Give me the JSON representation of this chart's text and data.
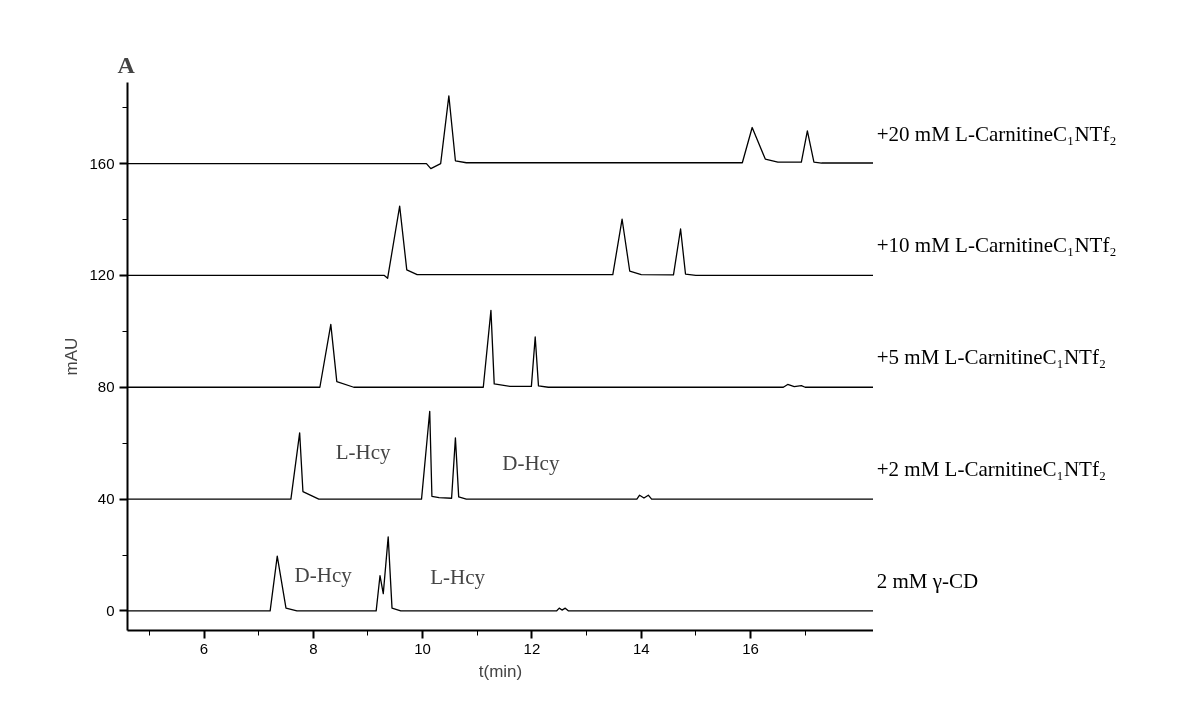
{
  "chart_data": {
    "type": "line",
    "title": "A",
    "xlabel": "t(min)",
    "ylabel": "mAU",
    "xlim": [
      4.6,
      18.25
    ],
    "ylim": [
      -7,
      189
    ],
    "xticks": [
      {
        "value": 5,
        "label": null
      },
      6,
      {
        "value": 7,
        "label": null
      },
      8,
      {
        "value": 9,
        "label": null
      },
      10,
      {
        "value": 11,
        "label": null
      },
      12,
      {
        "value": 13,
        "label": null
      },
      14,
      {
        "value": 15,
        "label": null
      },
      16,
      {
        "value": 17,
        "label": null
      }
    ],
    "yticks": [
      0,
      {
        "value": 20,
        "label": null
      },
      40,
      {
        "value": 60,
        "label": null
      },
      80,
      {
        "value": 100,
        "label": null
      },
      120,
      {
        "value": 140,
        "label": null
      },
      160,
      {
        "value": 180,
        "label": null
      }
    ],
    "grid": false,
    "marker": "none",
    "line_style": "solid",
    "annotations": [
      "D-Hcy",
      "L-Hcy",
      "L-Hcy",
      "D-Hcy"
    ],
    "series": [
      {
        "name": "2 mM γ-CD",
        "color": "#000000",
        "x": [
          4.6,
          7.21,
          7.34,
          7.5,
          7.7,
          9.15,
          9.22,
          9.28,
          9.37,
          9.44,
          9.6,
          12.45,
          12.5,
          12.55,
          12.61,
          12.67,
          18.25
        ],
        "values": [
          0,
          0,
          19.6,
          1,
          0,
          0,
          12.6,
          6.2,
          26.5,
          1,
          0,
          0,
          1,
          0.3,
          1,
          0,
          0
        ]
      },
      {
        "name": "+2 mM L-CarnitineC₁NTf₂",
        "color": "#000000",
        "x": [
          4.6,
          7.59,
          7.75,
          7.81,
          8.1,
          9.98,
          10.13,
          10.17,
          10.3,
          10.53,
          10.6,
          10.66,
          10.8,
          13.92,
          13.97,
          14.05,
          14.13,
          14.19,
          18.25
        ],
        "values": [
          40,
          40,
          63.7,
          42.7,
          40,
          40,
          71.4,
          41,
          40.5,
          40.3,
          61.9,
          40.8,
          40,
          40,
          41.4,
          40.4,
          41.4,
          40,
          40
        ]
      },
      {
        "name": "+5 mM L-CarnitineC₁NTf₂",
        "color": "#000000",
        "x": [
          4.6,
          8.12,
          8.32,
          8.43,
          8.74,
          11.11,
          11.25,
          11.31,
          11.6,
          11.99,
          12.06,
          12.12,
          12.3,
          16.6,
          16.68,
          16.8,
          16.93,
          17.0,
          18.25
        ],
        "values": [
          80,
          80,
          102.5,
          82,
          80,
          80,
          107.5,
          81.2,
          80.3,
          80.3,
          98,
          80.5,
          80,
          80,
          81,
          80.2,
          80.6,
          80,
          80
        ]
      },
      {
        "name": "+10 mM L-CarnitineC₁NTf₂",
        "color": "#000000",
        "x": [
          4.6,
          9.3,
          9.36,
          9.58,
          9.71,
          9.9,
          13.48,
          13.65,
          13.79,
          14.0,
          14.59,
          14.72,
          14.81,
          15.0,
          18.25
        ],
        "values": [
          120,
          120,
          119,
          144.8,
          122,
          120.3,
          120.3,
          140.1,
          121.5,
          120.3,
          120.2,
          136.6,
          120.5,
          120,
          120
        ]
      },
      {
        "name": "+20 mM L-CarnitineC₁NTf₂",
        "color": "#000000",
        "x": [
          4.6,
          10.07,
          10.15,
          10.33,
          10.48,
          10.6,
          10.8,
          15.85,
          16.03,
          16.27,
          16.5,
          16.93,
          17.04,
          17.16,
          17.3,
          18.25
        ],
        "values": [
          160,
          160,
          158.2,
          160,
          184.2,
          161,
          160.3,
          160.3,
          172.9,
          161.6,
          160.5,
          160.5,
          171.7,
          160.5,
          160.2,
          160.2
        ]
      }
    ]
  }
}
